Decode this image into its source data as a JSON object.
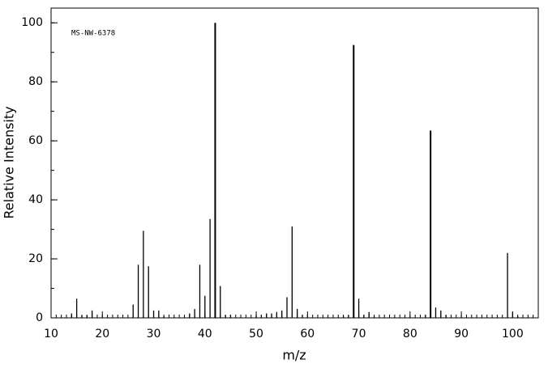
{
  "chart_data": {
    "type": "stem",
    "annotation": "MS-NW-6378",
    "x_label": "m/z",
    "y_label": "Relative Intensity",
    "x": [
      14,
      15,
      16,
      17,
      18,
      26,
      27,
      28,
      29,
      30,
      31,
      32,
      37,
      38,
      39,
      40,
      41,
      42,
      43,
      44,
      45,
      50,
      51,
      52,
      53,
      54,
      55,
      56,
      57,
      58,
      59,
      67,
      68,
      69,
      70,
      71,
      72,
      73,
      83,
      84,
      85,
      86,
      87,
      99,
      100,
      101
    ],
    "values": [
      1.5,
      6.5,
      0.8,
      0.8,
      2.5,
      4.5,
      18,
      29.5,
      17.5,
      2.5,
      2.5,
      0.5,
      1.5,
      3,
      18,
      7.5,
      33.5,
      100,
      10.8,
      1,
      1,
      0.8,
      1,
      1.5,
      1.5,
      2,
      2.5,
      7,
      31,
      3,
      1,
      0.5,
      0.8,
      92.5,
      6.5,
      1,
      2,
      0.5,
      1,
      63.5,
      3.5,
      2.5,
      1,
      22,
      2,
      0.5
    ],
    "color": "#000000",
    "xlim": [
      10,
      105
    ],
    "xticks": [
      10,
      20,
      30,
      40,
      50,
      60,
      70,
      80,
      90,
      100
    ],
    "ylim": [
      0,
      105
    ],
    "yticks": [
      0,
      20,
      40,
      60,
      80,
      100
    ]
  }
}
